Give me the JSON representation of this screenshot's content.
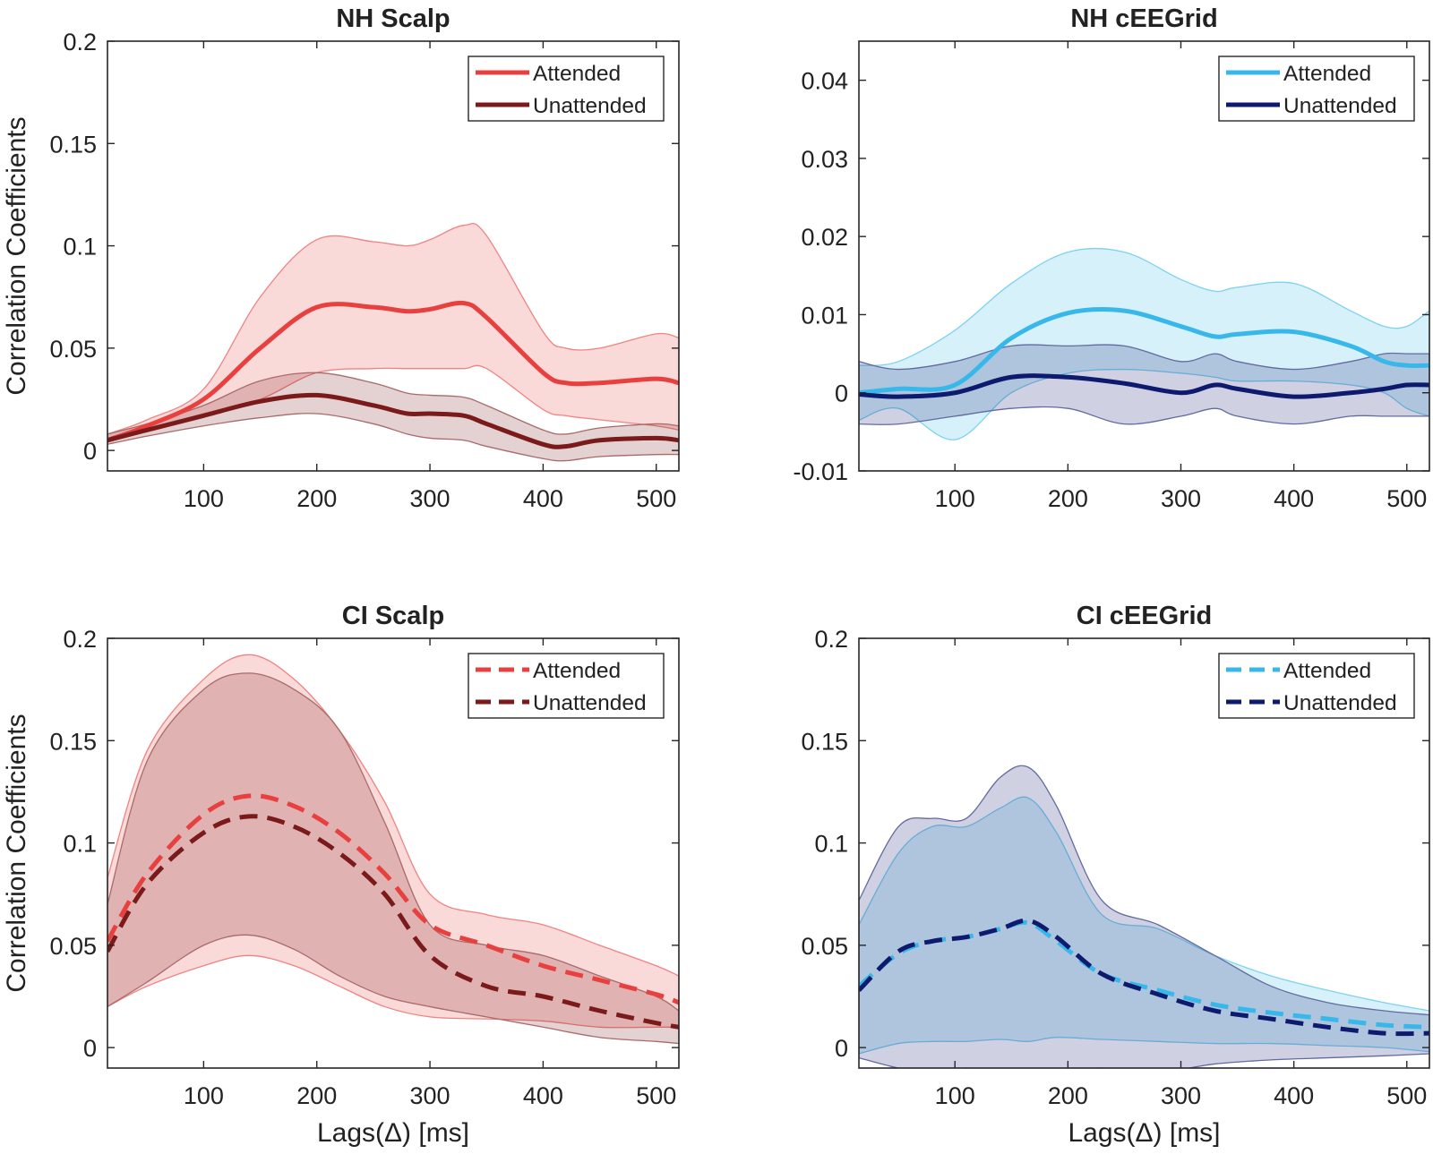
{
  "chart_data": [
    {
      "id": "nh-scalp",
      "type": "line",
      "title": "NH Scalp",
      "xlabel": "",
      "ylabel": "Correlation Coefficients",
      "xlim": [
        15,
        520
      ],
      "ylim": [
        -0.01,
        0.2
      ],
      "xticks": [
        100,
        200,
        300,
        400,
        500
      ],
      "xtick_labels": [
        "100",
        "200",
        "300",
        "400",
        "500"
      ],
      "yticks": [
        0,
        0.05,
        0.1,
        0.15,
        0.2
      ],
      "ytick_labels": [
        "0",
        "0.05",
        "0.1",
        "0.15",
        "0.2"
      ],
      "legend_position": "top-right",
      "x": [
        15,
        50,
        100,
        150,
        200,
        250,
        280,
        300,
        330,
        350,
        400,
        420,
        450,
        500,
        520
      ],
      "series": [
        {
          "name": "Attended",
          "color": "#e8403f",
          "dashed": false,
          "values": [
            0.005,
            0.012,
            0.025,
            0.05,
            0.07,
            0.07,
            0.068,
            0.069,
            0.072,
            0.065,
            0.038,
            0.033,
            0.033,
            0.035,
            0.033
          ],
          "lower": [
            0.004,
            0.01,
            0.018,
            0.025,
            0.038,
            0.04,
            0.04,
            0.04,
            0.04,
            0.04,
            0.02,
            0.017,
            0.015,
            0.012,
            0.01
          ],
          "upper": [
            0.008,
            0.015,
            0.03,
            0.075,
            0.103,
            0.102,
            0.1,
            0.103,
            0.11,
            0.105,
            0.058,
            0.05,
            0.05,
            0.057,
            0.055
          ]
        },
        {
          "name": "Unattended",
          "color": "#7a1a1a",
          "dashed": false,
          "values": [
            0.005,
            0.01,
            0.017,
            0.024,
            0.027,
            0.022,
            0.018,
            0.018,
            0.017,
            0.013,
            0.003,
            0.002,
            0.005,
            0.006,
            0.005
          ],
          "lower": [
            0.003,
            0.007,
            0.012,
            0.016,
            0.018,
            0.013,
            0.008,
            0.006,
            0.005,
            0.002,
            -0.004,
            -0.005,
            -0.003,
            -0.002,
            -0.002
          ],
          "upper": [
            0.008,
            0.013,
            0.022,
            0.034,
            0.038,
            0.033,
            0.028,
            0.027,
            0.026,
            0.022,
            0.01,
            0.008,
            0.011,
            0.013,
            0.012
          ]
        }
      ]
    },
    {
      "id": "nh-ceegrid",
      "type": "line",
      "title": "NH cEEGrid",
      "xlabel": "",
      "ylabel": "",
      "xlim": [
        15,
        520
      ],
      "ylim": [
        -0.01,
        0.045
      ],
      "xticks": [
        100,
        200,
        300,
        400,
        500
      ],
      "xtick_labels": [
        "100",
        "200",
        "300",
        "400",
        "500"
      ],
      "yticks": [
        -0.01,
        0,
        0.01,
        0.02,
        0.03,
        0.04
      ],
      "ytick_labels": [
        "-0.01",
        "0",
        "0.01",
        "0.02",
        "0.03",
        "0.04"
      ],
      "legend_position": "top-right",
      "x": [
        15,
        50,
        100,
        150,
        200,
        250,
        300,
        330,
        350,
        400,
        450,
        480,
        500,
        520
      ],
      "series": [
        {
          "name": "Attended",
          "color": "#38b8ea",
          "dashed": false,
          "values": [
            0.0,
            0.0005,
            0.001,
            0.007,
            0.0102,
            0.0105,
            0.0085,
            0.0072,
            0.0075,
            0.0078,
            0.006,
            0.004,
            0.0035,
            0.0035
          ],
          "lower": [
            -0.0035,
            -0.002,
            -0.006,
            0.0,
            0.0025,
            0.003,
            0.0025,
            0.002,
            0.0015,
            0.0015,
            0.001,
            0.0,
            -0.002,
            -0.003
          ],
          "upper": [
            0.0035,
            0.004,
            0.008,
            0.014,
            0.018,
            0.018,
            0.0145,
            0.013,
            0.0135,
            0.014,
            0.0105,
            0.0085,
            0.0085,
            0.0105
          ]
        },
        {
          "name": "Unattended",
          "color": "#0d1a6e",
          "dashed": false,
          "values": [
            -0.0002,
            -0.0005,
            0.0,
            0.002,
            0.002,
            0.0012,
            0.0,
            0.001,
            0.0005,
            -0.0005,
            0.0,
            0.0005,
            0.001,
            0.001
          ],
          "lower": [
            -0.004,
            -0.004,
            -0.003,
            -0.002,
            -0.002,
            -0.004,
            -0.003,
            -0.002,
            -0.003,
            -0.004,
            -0.003,
            -0.003,
            -0.003,
            -0.003
          ],
          "upper": [
            0.004,
            0.003,
            0.004,
            0.006,
            0.006,
            0.006,
            0.004,
            0.005,
            0.004,
            0.003,
            0.004,
            0.005,
            0.005,
            0.005
          ]
        }
      ]
    },
    {
      "id": "ci-scalp",
      "type": "line",
      "title": "CI Scalp",
      "xlabel": "Lags(Δ) [ms]",
      "ylabel": "Correlation Coefficients",
      "xlim": [
        15,
        520
      ],
      "ylim": [
        -0.01,
        0.2
      ],
      "xticks": [
        100,
        200,
        300,
        400,
        500
      ],
      "xtick_labels": [
        "100",
        "200",
        "300",
        "400",
        "500"
      ],
      "yticks": [
        0,
        0.05,
        0.1,
        0.15,
        0.2
      ],
      "ytick_labels": [
        "0",
        "0.05",
        "0.1",
        "0.15",
        "0.2"
      ],
      "legend_position": "top-right",
      "x": [
        15,
        50,
        100,
        140,
        180,
        220,
        260,
        300,
        350,
        400,
        450,
        500,
        520
      ],
      "series": [
        {
          "name": "Attended",
          "color": "#e8403f",
          "dashed": true,
          "values": [
            0.052,
            0.085,
            0.114,
            0.123,
            0.118,
            0.105,
            0.085,
            0.06,
            0.05,
            0.04,
            0.033,
            0.026,
            0.022
          ],
          "lower": [
            0.02,
            0.03,
            0.04,
            0.045,
            0.04,
            0.03,
            0.02,
            0.015,
            0.014,
            0.013,
            0.01,
            0.01,
            0.01
          ],
          "upper": [
            0.083,
            0.145,
            0.18,
            0.192,
            0.18,
            0.155,
            0.12,
            0.075,
            0.065,
            0.06,
            0.05,
            0.04,
            0.035
          ]
        },
        {
          "name": "Unattended",
          "color": "#7a1a1a",
          "dashed": true,
          "values": [
            0.047,
            0.08,
            0.105,
            0.113,
            0.108,
            0.095,
            0.075,
            0.045,
            0.03,
            0.025,
            0.018,
            0.012,
            0.01
          ],
          "lower": [
            0.02,
            0.032,
            0.05,
            0.055,
            0.048,
            0.035,
            0.025,
            0.02,
            0.015,
            0.01,
            0.005,
            0.003,
            0.002
          ],
          "upper": [
            0.07,
            0.14,
            0.175,
            0.183,
            0.175,
            0.155,
            0.11,
            0.06,
            0.05,
            0.045,
            0.035,
            0.025,
            0.018
          ]
        }
      ]
    },
    {
      "id": "ci-ceegrid",
      "type": "line",
      "title": "CI cEEGrid",
      "xlabel": "Lags(Δ) [ms]",
      "ylabel": "",
      "xlim": [
        15,
        520
      ],
      "ylim": [
        -0.01,
        0.2
      ],
      "xticks": [
        100,
        200,
        300,
        400,
        500
      ],
      "xtick_labels": [
        "100",
        "200",
        "300",
        "400",
        "500"
      ],
      "yticks": [
        0,
        0.05,
        0.1,
        0.15,
        0.2
      ],
      "ytick_labels": [
        "0",
        "0.05",
        "0.1",
        "0.15",
        "0.2"
      ],
      "legend_position": "top-right",
      "x": [
        15,
        50,
        80,
        110,
        140,
        165,
        190,
        230,
        280,
        330,
        380,
        430,
        480,
        520
      ],
      "series": [
        {
          "name": "Attended",
          "color": "#38b8ea",
          "dashed": true,
          "values": [
            0.03,
            0.046,
            0.052,
            0.054,
            0.058,
            0.061,
            0.052,
            0.036,
            0.028,
            0.021,
            0.017,
            0.014,
            0.011,
            0.01
          ],
          "lower": [
            -0.003,
            0.002,
            0.003,
            0.003,
            0.004,
            0.003,
            0.005,
            0.004,
            0.003,
            0.002,
            0.002,
            0.001,
            0.0,
            -0.002
          ],
          "upper": [
            0.06,
            0.095,
            0.108,
            0.108,
            0.117,
            0.122,
            0.105,
            0.065,
            0.058,
            0.045,
            0.035,
            0.028,
            0.022,
            0.018
          ]
        },
        {
          "name": "Unattended",
          "color": "#0d1a6e",
          "dashed": true,
          "values": [
            0.028,
            0.047,
            0.052,
            0.054,
            0.058,
            0.062,
            0.054,
            0.036,
            0.026,
            0.018,
            0.014,
            0.01,
            0.007,
            0.007
          ],
          "lower": [
            -0.005,
            -0.01,
            -0.012,
            -0.01,
            -0.012,
            -0.015,
            -0.012,
            -0.01,
            -0.012,
            -0.008,
            -0.006,
            -0.005,
            -0.004,
            -0.003
          ],
          "upper": [
            0.072,
            0.108,
            0.112,
            0.112,
            0.132,
            0.137,
            0.118,
            0.072,
            0.06,
            0.045,
            0.03,
            0.022,
            0.018,
            0.016
          ]
        }
      ]
    }
  ]
}
